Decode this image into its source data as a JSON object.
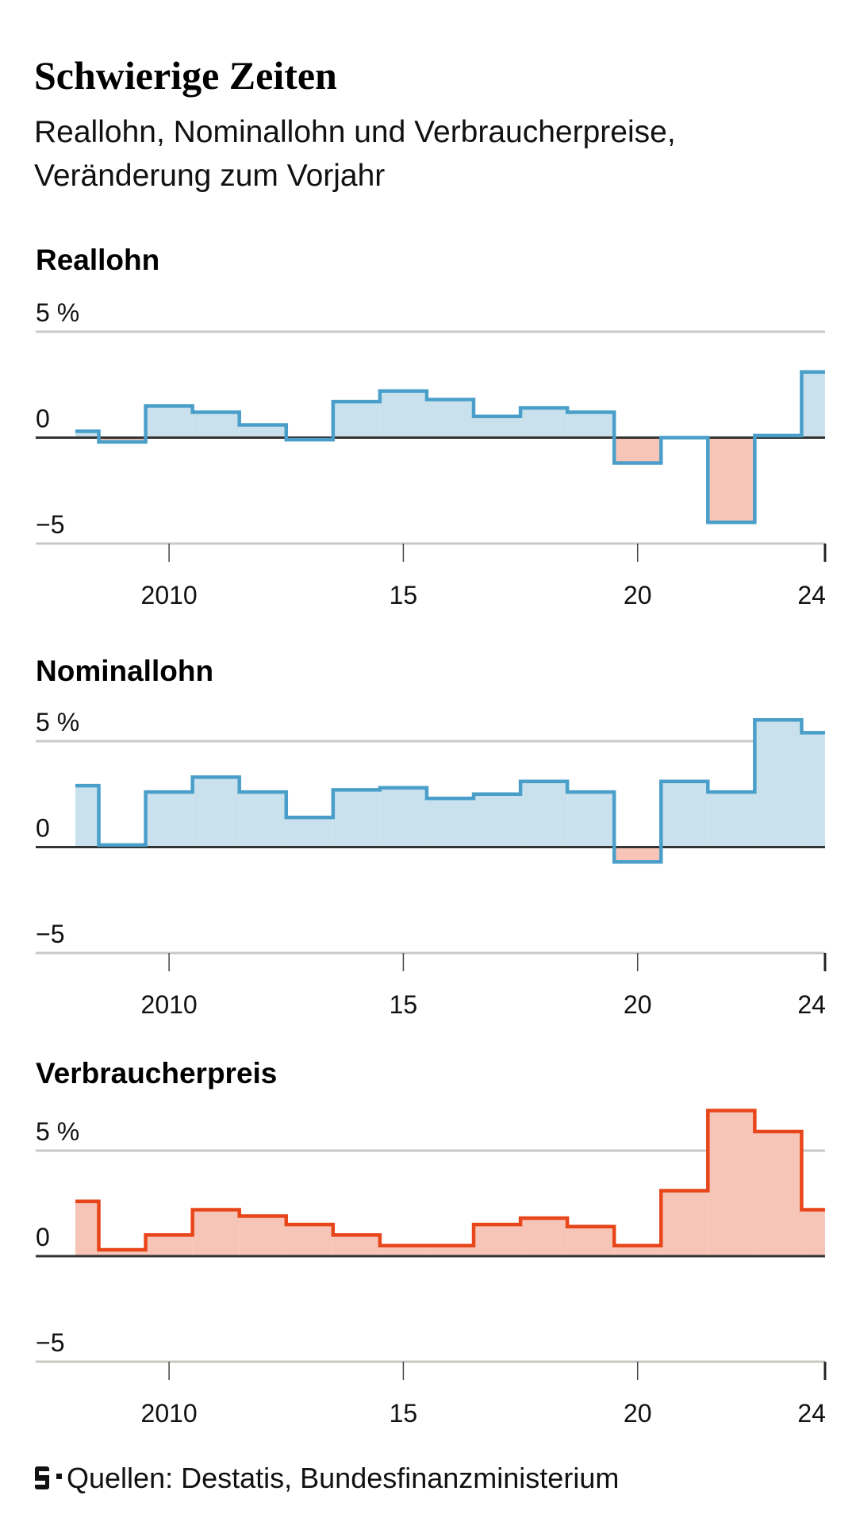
{
  "header": {
    "title": "Schwierige Zeiten",
    "subtitle_line1": "Reallohn, Nominallohn und Verbraucherpreise,",
    "subtitle_line2": "Veränderung zum Vorjahr"
  },
  "footer": {
    "logo": "S",
    "source": "Quellen: Destatis, Bundesfinanzministerium"
  },
  "colors": {
    "blue_line": "#4a9fca",
    "blue_fill": "#c9e1ec",
    "red_line": "#e8461a",
    "red_fill": "#f6c5b7",
    "grid": "#c8c8c4",
    "zero": "#333333"
  },
  "chart_data": [
    {
      "type": "area",
      "step": true,
      "title": "Reallohn",
      "ylim": [
        -5,
        5
      ],
      "yticks": [
        {
          "value": 5,
          "label": "5 %"
        },
        {
          "value": 0,
          "label": "0"
        },
        {
          "value": -5,
          "label": "−5"
        }
      ],
      "xticks": [
        {
          "value": 2010,
          "label": "2010"
        },
        {
          "value": 2015,
          "label": "15"
        },
        {
          "value": 2020,
          "label": "20"
        },
        {
          "value": 2024,
          "label": "24"
        }
      ],
      "line_color": "blue",
      "x": [
        2008,
        2009,
        2010,
        2011,
        2012,
        2013,
        2014,
        2015,
        2016,
        2017,
        2018,
        2019,
        2020,
        2021,
        2022,
        2023,
        2024
      ],
      "values": [
        0.3,
        -0.2,
        1.5,
        1.2,
        0.6,
        -0.1,
        1.7,
        2.2,
        1.8,
        1.0,
        1.4,
        1.2,
        -1.2,
        0.0,
        -4.0,
        0.1,
        3.1
      ]
    },
    {
      "type": "area",
      "step": true,
      "title": "Nominallohn",
      "ylim": [
        -5,
        5
      ],
      "yticks": [
        {
          "value": 5,
          "label": "5 %"
        },
        {
          "value": 0,
          "label": "0"
        },
        {
          "value": -5,
          "label": "−5"
        }
      ],
      "xticks": [
        {
          "value": 2010,
          "label": "2010"
        },
        {
          "value": 2015,
          "label": "15"
        },
        {
          "value": 2020,
          "label": "20"
        },
        {
          "value": 2024,
          "label": "24"
        }
      ],
      "line_color": "blue",
      "x": [
        2008,
        2009,
        2010,
        2011,
        2012,
        2013,
        2014,
        2015,
        2016,
        2017,
        2018,
        2019,
        2020,
        2021,
        2022,
        2023,
        2024
      ],
      "values": [
        2.9,
        0.1,
        2.6,
        3.3,
        2.6,
        1.4,
        2.7,
        2.8,
        2.3,
        2.5,
        3.1,
        2.6,
        -0.7,
        3.1,
        2.6,
        6.0,
        5.4
      ]
    },
    {
      "type": "area",
      "step": true,
      "title": "Verbraucherpreis",
      "ylim": [
        -5,
        5
      ],
      "yticks": [
        {
          "value": 5,
          "label": "5 %"
        },
        {
          "value": 0,
          "label": "0"
        },
        {
          "value": -5,
          "label": "−5"
        }
      ],
      "xticks": [
        {
          "value": 2010,
          "label": "2010"
        },
        {
          "value": 2015,
          "label": "15"
        },
        {
          "value": 2020,
          "label": "20"
        },
        {
          "value": 2024,
          "label": "24"
        }
      ],
      "line_color": "red",
      "x": [
        2008,
        2009,
        2010,
        2011,
        2012,
        2013,
        2014,
        2015,
        2016,
        2017,
        2018,
        2019,
        2020,
        2021,
        2022,
        2023,
        2024
      ],
      "values": [
        2.6,
        0.3,
        1.0,
        2.2,
        1.9,
        1.5,
        1.0,
        0.5,
        0.5,
        1.5,
        1.8,
        1.4,
        0.5,
        3.1,
        6.9,
        5.9,
        2.2
      ]
    }
  ]
}
